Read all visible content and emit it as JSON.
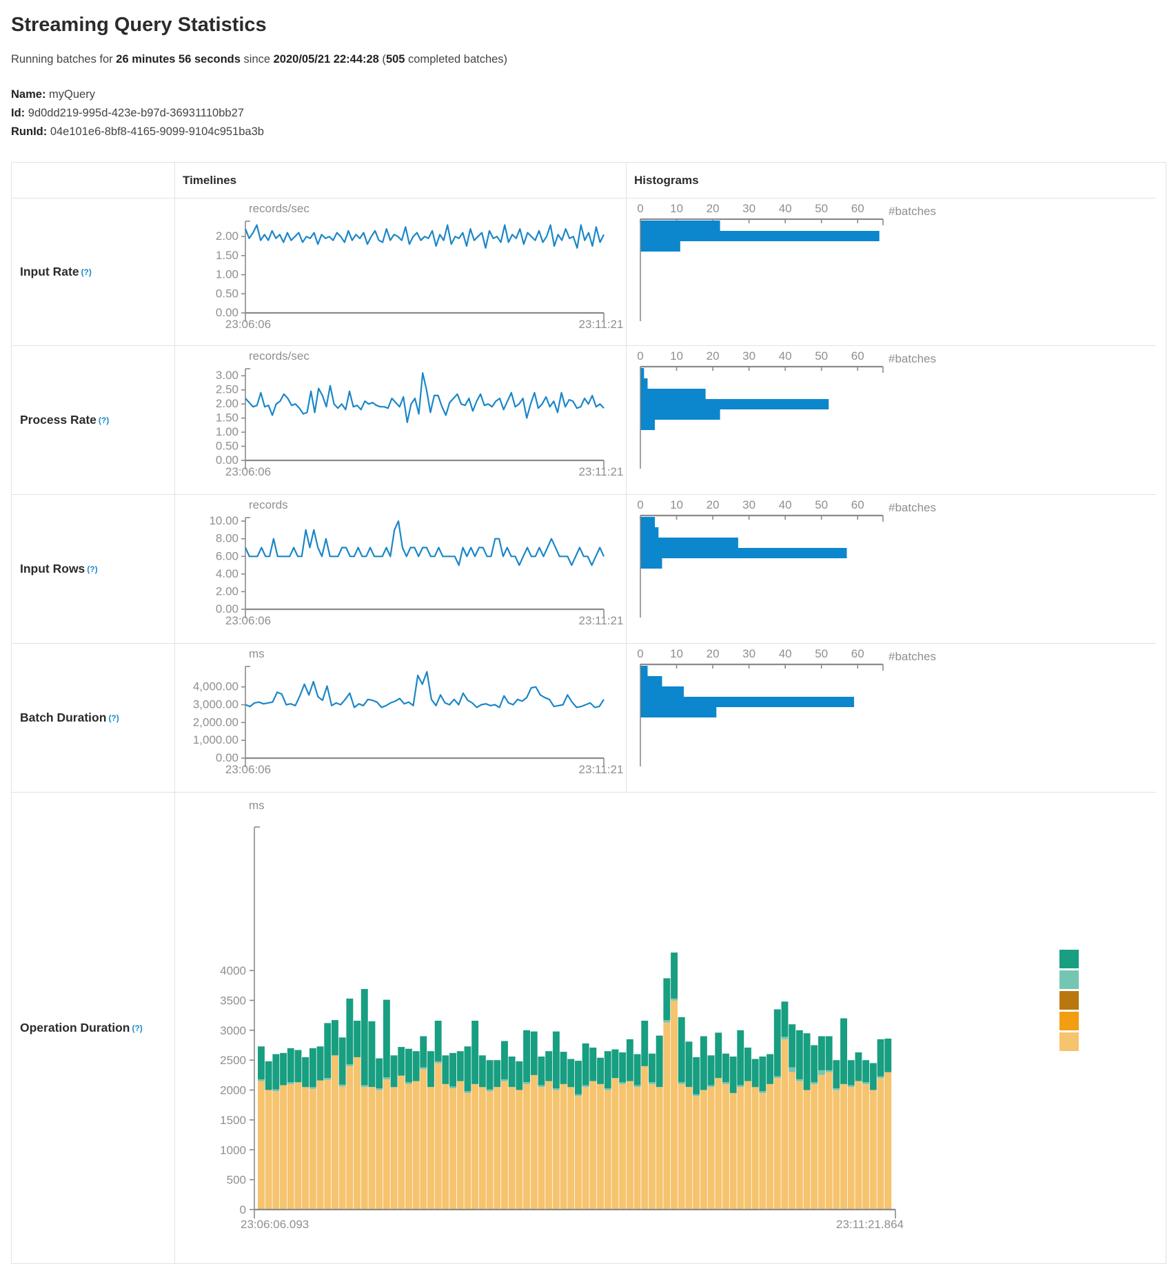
{
  "page": {
    "title": "Streaming Query Statistics",
    "subtitle": {
      "prefix": "Running batches for ",
      "duration": "26 minutes 56 seconds",
      "since": " since ",
      "start_time": "2020/05/21 22:44:28",
      "open": " (",
      "batches": "505",
      "suffix": " completed batches)"
    },
    "meta": {
      "name_label": "Name:",
      "name": "myQuery",
      "id_label": "Id:",
      "id": "9d0dd219-995d-423e-b97d-36931110bb27",
      "runid_label": "RunId:",
      "runid": "04e101e6-8bf8-4165-9099-9104c951ba3b"
    }
  },
  "table": {
    "headers": {
      "timelines": "Timelines",
      "histograms": "Histograms"
    },
    "rows": [
      {
        "label": "Input Rate",
        "help": "(?)"
      },
      {
        "label": "Process Rate",
        "help": "(?)"
      },
      {
        "label": "Input Rows",
        "help": "(?)"
      },
      {
        "label": "Batch Duration",
        "help": "(?)"
      },
      {
        "label": "Operation Duration",
        "help": "(?)"
      }
    ]
  },
  "colors": {
    "line_blue": "#1a86c8",
    "hist_blue": "#0c86cc",
    "axis_gray": "#8a8a8a",
    "teal": "#189e80",
    "light_teal": "#74c6b3",
    "dark_orange": "#b8780f",
    "orange": "#f39d11",
    "tan": "#f6c36e"
  },
  "chart_data": {
    "input_rate": {
      "timeline": {
        "type": "line",
        "unit": "records/sec",
        "x_start": "23:06:06",
        "x_end": "23:11:21",
        "ymax": 2.4,
        "yticks": [
          [
            0,
            "0.00"
          ],
          [
            0.5,
            "0.50"
          ],
          [
            1,
            "1.00"
          ],
          [
            1.5,
            "1.50"
          ],
          [
            2,
            "2.00"
          ]
        ],
        "values": [
          2.2,
          1.95,
          2.1,
          2.3,
          1.9,
          2.05,
          1.9,
          2.15,
          1.95,
          2.05,
          1.85,
          2.1,
          1.9,
          2.0,
          2.1,
          1.85,
          2.0,
          1.95,
          2.1,
          1.8,
          2.05,
          1.95,
          2.0,
          1.9,
          2.1,
          2.0,
          1.85,
          2.15,
          1.9,
          2.05,
          1.95,
          2.1,
          1.8,
          2.0,
          2.15,
          1.9,
          1.85,
          2.2,
          1.9,
          2.05,
          2.0,
          1.9,
          2.25,
          1.8,
          2.0,
          2.1,
          1.9,
          2.0,
          1.95,
          2.15,
          1.75,
          2.05,
          1.9,
          2.3,
          1.8,
          2.0,
          1.95,
          2.1,
          1.75,
          2.2,
          1.9,
          2.0,
          2.1,
          1.7,
          2.15,
          1.95,
          2.0,
          1.85,
          2.3,
          1.85,
          2.05,
          1.95,
          2.2,
          1.8,
          2.1,
          2.0,
          1.9,
          2.15,
          1.85,
          2.0,
          2.3,
          1.75,
          2.05,
          1.9,
          2.2,
          1.95,
          2.0,
          1.7,
          2.3,
          1.9,
          2.1,
          1.75,
          2.25,
          1.85,
          2.05
        ]
      },
      "histogram": {
        "type": "bar_h",
        "xlabel": "#batches",
        "axis_max": 67,
        "xticks": [
          0,
          10,
          20,
          30,
          40,
          50,
          60
        ],
        "values": [
          22,
          66,
          11
        ]
      }
    },
    "process_rate": {
      "timeline": {
        "type": "line",
        "unit": "records/sec",
        "x_start": "23:06:06",
        "x_end": "23:11:21",
        "ymax": 3.25,
        "yticks": [
          [
            0,
            "0.00"
          ],
          [
            0.5,
            "0.50"
          ],
          [
            1,
            "1.00"
          ],
          [
            1.5,
            "1.50"
          ],
          [
            2,
            "2.00"
          ],
          [
            2.5,
            "2.50"
          ],
          [
            3,
            "3.00"
          ]
        ],
        "values": [
          2.2,
          2.05,
          1.9,
          1.95,
          2.4,
          1.9,
          1.95,
          1.6,
          2.0,
          2.1,
          2.35,
          2.2,
          1.95,
          2.0,
          1.85,
          1.65,
          1.7,
          2.45,
          1.7,
          2.55,
          2.3,
          1.9,
          2.65,
          2.0,
          1.85,
          2.0,
          1.8,
          2.45,
          1.9,
          1.95,
          1.8,
          2.1,
          2.0,
          2.05,
          1.95,
          1.9,
          1.9,
          1.85,
          2.2,
          2.05,
          1.9,
          2.25,
          1.35,
          2.0,
          2.2,
          1.65,
          3.1,
          2.5,
          1.7,
          2.3,
          2.3,
          1.9,
          1.6,
          2.05,
          2.2,
          2.35,
          2.0,
          1.95,
          2.2,
          1.75,
          2.1,
          2.35,
          1.95,
          2.0,
          1.9,
          2.1,
          2.2,
          1.8,
          2.1,
          2.4,
          1.9,
          2.0,
          2.2,
          1.5,
          2.0,
          2.4,
          1.85,
          2.0,
          2.25,
          1.9,
          2.1,
          1.7,
          2.4,
          1.9,
          2.15,
          2.1,
          1.85,
          1.9,
          2.2,
          2.0,
          2.3,
          1.9,
          2.0,
          1.85
        ]
      },
      "histogram": {
        "type": "bar_h",
        "xlabel": "#batches",
        "axis_max": 67,
        "xticks": [
          0,
          10,
          20,
          30,
          40,
          50,
          60
        ],
        "values": [
          1,
          2,
          18,
          52,
          22,
          4
        ]
      }
    },
    "input_rows": {
      "timeline": {
        "type": "line",
        "unit": "records",
        "x_start": "23:06:06",
        "x_end": "23:11:21",
        "ymax": 10.4,
        "yticks": [
          [
            0,
            "0.00"
          ],
          [
            2,
            "2.00"
          ],
          [
            4,
            "4.00"
          ],
          [
            6,
            "6.00"
          ],
          [
            8,
            "8.00"
          ],
          [
            10,
            "10.00"
          ]
        ],
        "values": [
          7,
          6,
          6,
          6,
          7,
          6,
          6,
          8,
          6,
          6,
          6,
          6,
          7,
          6,
          6,
          9,
          7,
          9,
          7,
          6,
          8,
          6,
          6,
          6,
          7,
          7,
          6,
          6,
          7,
          6,
          6,
          7,
          6,
          6,
          6,
          7,
          6,
          9,
          10,
          7,
          6,
          7,
          7,
          6,
          7,
          7,
          6,
          6,
          7,
          6,
          6,
          6,
          6,
          5,
          7,
          6,
          7,
          6,
          7,
          7,
          6,
          6,
          8,
          8,
          6,
          7,
          6,
          6,
          5,
          6,
          7,
          6,
          6,
          7,
          6,
          7,
          8,
          7,
          6,
          6,
          6,
          5,
          6,
          7,
          6,
          6,
          5,
          6,
          7,
          6
        ]
      },
      "histogram": {
        "type": "bar_h",
        "xlabel": "#batches",
        "axis_max": 67,
        "xticks": [
          0,
          10,
          20,
          30,
          40,
          50,
          60
        ],
        "values": [
          4,
          5,
          27,
          57,
          6
        ]
      }
    },
    "batch_duration": {
      "timeline": {
        "type": "line",
        "unit": "ms",
        "x_start": "23:06:06",
        "x_end": "23:11:21",
        "ymax": 5150,
        "yticks": [
          [
            0,
            "0.00"
          ],
          [
            1000,
            "1,000.00"
          ],
          [
            2000,
            "2,000.00"
          ],
          [
            3000,
            "3,000.00"
          ],
          [
            4000,
            "4,000.00"
          ]
        ],
        "values": [
          3000,
          2900,
          3100,
          3150,
          3050,
          3100,
          3150,
          3700,
          3600,
          3000,
          3050,
          2950,
          3500,
          4150,
          3550,
          4300,
          3450,
          3250,
          4050,
          2950,
          3100,
          3000,
          3300,
          3650,
          2850,
          3050,
          2950,
          3300,
          3250,
          3150,
          2850,
          2950,
          3100,
          3200,
          3350,
          3050,
          3150,
          2950,
          4650,
          4150,
          4850,
          3300,
          2950,
          3550,
          3100,
          3000,
          3300,
          3000,
          3650,
          3250,
          3100,
          2850,
          3000,
          3050,
          2950,
          3000,
          2850,
          3500,
          3100,
          3000,
          3300,
          3200,
          3400,
          3950,
          4000,
          3550,
          3400,
          3300,
          2900,
          2950,
          3000,
          3550,
          3150,
          2850,
          2900,
          3000,
          3100,
          2850,
          2900,
          3300
        ]
      },
      "histogram": {
        "type": "bar_h",
        "xlabel": "#batches",
        "axis_max": 67,
        "xticks": [
          0,
          10,
          20,
          30,
          40,
          50,
          60
        ],
        "values": [
          2,
          6,
          12,
          59,
          21
        ]
      }
    },
    "operation_duration": {
      "type": "stacked_bar",
      "unit": "ms",
      "x_start": "23:06:06.093",
      "x_end": "23:11:21.864",
      "ymax": 6400,
      "ytick_step": 500,
      "ytick_top": 4000,
      "segment_colors": [
        "#f6c36e",
        "#74c6b3",
        "#189e80"
      ],
      "legend_colors": [
        "#189e80",
        "#74c6b3",
        "#b8780f",
        "#f39d11",
        "#f6c36e"
      ],
      "bars": [
        [
          2150,
          30,
          550
        ],
        [
          2000,
          0,
          480
        ],
        [
          1980,
          30,
          590
        ],
        [
          2080,
          0,
          540
        ],
        [
          2100,
          30,
          570
        ],
        [
          2130,
          0,
          540
        ],
        [
          2050,
          0,
          500
        ],
        [
          2020,
          30,
          650
        ],
        [
          2160,
          0,
          570
        ],
        [
          2170,
          30,
          920
        ],
        [
          2580,
          0,
          590
        ],
        [
          2060,
          30,
          790
        ],
        [
          2400,
          30,
          1100
        ],
        [
          2550,
          0,
          610
        ],
        [
          2050,
          30,
          1610
        ],
        [
          2050,
          0,
          1100
        ],
        [
          2000,
          30,
          500
        ],
        [
          2180,
          30,
          1300
        ],
        [
          2050,
          0,
          530
        ],
        [
          2240,
          0,
          480
        ],
        [
          2100,
          30,
          560
        ],
        [
          2150,
          0,
          500
        ],
        [
          2350,
          30,
          520
        ],
        [
          2050,
          0,
          600
        ],
        [
          2450,
          30,
          680
        ],
        [
          2100,
          0,
          480
        ],
        [
          2030,
          30,
          560
        ],
        [
          2150,
          0,
          500
        ],
        [
          1950,
          30,
          750
        ],
        [
          2100,
          0,
          1060
        ],
        [
          2050,
          0,
          530
        ],
        [
          1980,
          30,
          490
        ],
        [
          2050,
          0,
          450
        ],
        [
          2150,
          30,
          640
        ],
        [
          2050,
          0,
          510
        ],
        [
          2000,
          0,
          480
        ],
        [
          2100,
          30,
          870
        ],
        [
          2250,
          0,
          730
        ],
        [
          2050,
          30,
          480
        ],
        [
          2150,
          0,
          500
        ],
        [
          2000,
          30,
          950
        ],
        [
          2100,
          0,
          540
        ],
        [
          2050,
          0,
          470
        ],
        [
          1900,
          30,
          560
        ],
        [
          2050,
          30,
          700
        ],
        [
          2150,
          0,
          560
        ],
        [
          2100,
          0,
          440
        ],
        [
          2000,
          30,
          620
        ],
        [
          2200,
          0,
          480
        ],
        [
          2100,
          30,
          500
        ],
        [
          2150,
          0,
          700
        ],
        [
          2050,
          30,
          520
        ],
        [
          2400,
          0,
          760
        ],
        [
          2100,
          30,
          480
        ],
        [
          2050,
          0,
          860
        ],
        [
          3130,
          40,
          700
        ],
        [
          3500,
          30,
          770
        ],
        [
          2100,
          30,
          1090
        ],
        [
          2050,
          0,
          760
        ],
        [
          1900,
          30,
          620
        ],
        [
          2000,
          0,
          900
        ],
        [
          2050,
          30,
          500
        ],
        [
          2200,
          0,
          760
        ],
        [
          2100,
          30,
          480
        ],
        [
          1950,
          0,
          610
        ],
        [
          2050,
          30,
          920
        ],
        [
          2150,
          0,
          560
        ],
        [
          2050,
          0,
          470
        ],
        [
          1950,
          30,
          580
        ],
        [
          2100,
          0,
          500
        ],
        [
          2200,
          30,
          1120
        ],
        [
          2850,
          40,
          590
        ],
        [
          2300,
          80,
          720
        ],
        [
          2150,
          30,
          820
        ],
        [
          2000,
          0,
          950
        ],
        [
          2100,
          30,
          620
        ],
        [
          2250,
          80,
          570
        ],
        [
          2300,
          30,
          570
        ],
        [
          2000,
          30,
          470
        ],
        [
          2100,
          0,
          1100
        ],
        [
          2050,
          30,
          420
        ],
        [
          2150,
          0,
          480
        ],
        [
          2100,
          30,
          370
        ],
        [
          2000,
          0,
          450
        ],
        [
          2200,
          30,
          620
        ],
        [
          2300,
          0,
          560
        ]
      ]
    }
  }
}
